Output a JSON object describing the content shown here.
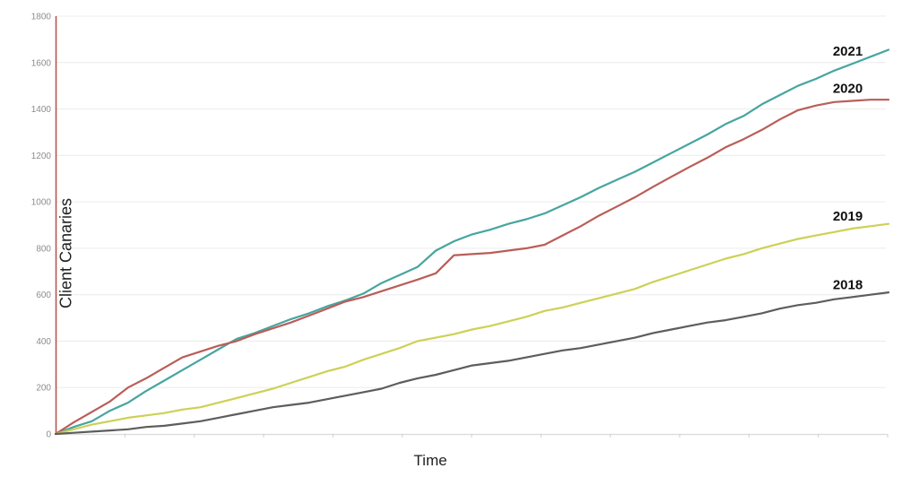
{
  "chart_data": {
    "type": "line",
    "title": "",
    "xlabel": "Time",
    "ylabel": "Client Canaries",
    "ylim": [
      0,
      1800
    ],
    "y_ticks": [
      0,
      200,
      400,
      600,
      800,
      1000,
      1200,
      1400,
      1600,
      1800
    ],
    "x_tick_labels_visible": false,
    "x_tick_count": 12,
    "grid": "horizontal",
    "legend": "inline-end-labels",
    "x": [
      0,
      1,
      2,
      3,
      4,
      5,
      6,
      7,
      8,
      9,
      10,
      11,
      12,
      13,
      14,
      15,
      16,
      17,
      18,
      19,
      20,
      21,
      22,
      23,
      24,
      25,
      26,
      27,
      28,
      29,
      30,
      31,
      32,
      33,
      34,
      35,
      36,
      37,
      38,
      39,
      40,
      41,
      42,
      43,
      44,
      45,
      46
    ],
    "series": [
      {
        "name": "2021",
        "color": "#46a5a0",
        "values": [
          0,
          30,
          55,
          100,
          135,
          185,
          230,
          275,
          320,
          365,
          410,
          435,
          465,
          495,
          520,
          550,
          575,
          605,
          650,
          685,
          720,
          790,
          830,
          860,
          880,
          905,
          925,
          950,
          985,
          1020,
          1060,
          1095,
          1130,
          1170,
          1210,
          1250,
          1290,
          1335,
          1370,
          1420,
          1460,
          1500,
          1530,
          1565,
          1595,
          1625,
          1655
        ]
      },
      {
        "name": "2020",
        "color": "#ba5d58",
        "values": [
          0,
          50,
          95,
          140,
          200,
          240,
          285,
          330,
          355,
          380,
          400,
          430,
          455,
          480,
          510,
          540,
          570,
          590,
          615,
          640,
          665,
          692,
          770,
          775,
          780,
          790,
          800,
          815,
          855,
          895,
          940,
          980,
          1020,
          1065,
          1108,
          1150,
          1190,
          1235,
          1270,
          1310,
          1355,
          1395,
          1415,
          1430,
          1435,
          1440,
          1440
        ]
      },
      {
        "name": "2019",
        "color": "#ccd155",
        "values": [
          0,
          20,
          40,
          55,
          70,
          80,
          90,
          105,
          115,
          135,
          155,
          175,
          195,
          220,
          245,
          270,
          290,
          320,
          345,
          370,
          400,
          415,
          430,
          450,
          465,
          485,
          505,
          530,
          545,
          565,
          585,
          605,
          625,
          655,
          680,
          705,
          730,
          755,
          775,
          800,
          820,
          840,
          855,
          870,
          885,
          895,
          905
        ]
      },
      {
        "name": "2018",
        "color": "#5d5d5f",
        "values": [
          0,
          5,
          10,
          15,
          20,
          30,
          35,
          45,
          55,
          70,
          85,
          100,
          115,
          125,
          135,
          150,
          165,
          180,
          195,
          220,
          240,
          255,
          275,
          295,
          305,
          315,
          330,
          345,
          360,
          370,
          385,
          400,
          415,
          435,
          450,
          465,
          480,
          490,
          505,
          520,
          540,
          555,
          565,
          580,
          590,
          600,
          610
        ]
      }
    ],
    "colors": {
      "y_axis_line": "#b85450",
      "x_axis_line": "#d9d9d9",
      "x_tick": "#cfcfcf",
      "gridline": "#ececec",
      "tick_label_text": "#8c8c8c",
      "series_label_text": "#111111"
    }
  }
}
